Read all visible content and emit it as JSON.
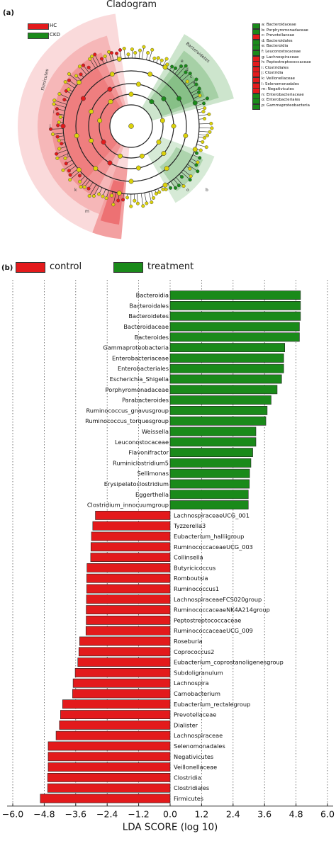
{
  "panel_a_label": "(a)",
  "panel_b_label": "(b)",
  "cladogram": {
    "title": "Cladogram",
    "groups": [
      {
        "name": "HC",
        "color": "#e31a1c"
      },
      {
        "name": "CKD",
        "color": "#1a8a1a"
      }
    ],
    "clade_labels": [
      {
        "text": "Firmicutes",
        "color": "#e31a1c"
      },
      {
        "text": "Bacteroidetes",
        "color": "#1a8a1a"
      }
    ],
    "wedge_letters": [
      "i",
      "l",
      "k",
      "m",
      "e",
      "d",
      "c",
      "a",
      "b",
      "o",
      "j"
    ],
    "legend": [
      {
        "label": "a: Bacteroidaceae",
        "color": "#1a8a1a"
      },
      {
        "label": "b: Porphyromonadaceae",
        "color": "#1a8a1a"
      },
      {
        "label": "c: Prevotellaceae",
        "color": "#e31a1c"
      },
      {
        "label": "d: Bacteroidales",
        "color": "#1a8a1a"
      },
      {
        "label": "e: Bacteroidia",
        "color": "#1a8a1a"
      },
      {
        "label": "f: Leuconostocaceae",
        "color": "#1a8a1a"
      },
      {
        "label": "g: Lachnospiraceae",
        "color": "#e31a1c"
      },
      {
        "label": "h: Peptostreptococcaceae",
        "color": "#e31a1c"
      },
      {
        "label": "i: Clostridiales",
        "color": "#e31a1c"
      },
      {
        "label": "j: Clostridia",
        "color": "#e31a1c"
      },
      {
        "label": "k: Veillonellaceae",
        "color": "#e31a1c"
      },
      {
        "label": "l: Selenomonadales",
        "color": "#e31a1c"
      },
      {
        "label": "m: Negativicutes",
        "color": "#e31a1c"
      },
      {
        "label": "n: Enterobacteriaceae",
        "color": "#1a8a1a"
      },
      {
        "label": "o: Enterobacteriales",
        "color": "#1a8a1a"
      },
      {
        "label": "p: Gammaproteobacteria",
        "color": "#1a8a1a"
      }
    ]
  },
  "chart_data": {
    "type": "bar",
    "orientation": "horizontal",
    "xlabel": "LDA SCORE (log 10)",
    "ylabel": "",
    "xlim": [
      -6.0,
      6.0
    ],
    "xticks": [
      "−6.0",
      "−4.8",
      "−3.6",
      "−2.4",
      "−1.2",
      "0.0",
      "1.2",
      "2.4",
      "3.6",
      "4.8",
      "6.0"
    ],
    "xtick_values": [
      -6.0,
      -4.8,
      -3.6,
      -2.4,
      -1.2,
      0.0,
      1.2,
      2.4,
      3.6,
      4.8,
      6.0
    ],
    "grid": "vertical dotted",
    "legend_position": "top-left",
    "series": [
      {
        "name": "control",
        "color": "#e31a1c"
      },
      {
        "name": "treatment",
        "color": "#1a8a1a"
      }
    ],
    "bars": [
      {
        "label": "Bacteroidia",
        "value": 4.97,
        "group": "treatment"
      },
      {
        "label": "Bacteroidales",
        "value": 4.97,
        "group": "treatment"
      },
      {
        "label": "Bacteroidetes",
        "value": 4.97,
        "group": "treatment"
      },
      {
        "label": "Bacteroidaceae",
        "value": 4.93,
        "group": "treatment"
      },
      {
        "label": "Bacteroides",
        "value": 4.93,
        "group": "treatment"
      },
      {
        "label": "Gammaproteobacteria",
        "value": 4.37,
        "group": "treatment"
      },
      {
        "label": "Enterobacteriaceae",
        "value": 4.33,
        "group": "treatment"
      },
      {
        "label": "Enterobacteriales",
        "value": 4.33,
        "group": "treatment"
      },
      {
        "label": "Escherichia_Shigella",
        "value": 4.25,
        "group": "treatment"
      },
      {
        "label": "Porphyromonadaceae",
        "value": 4.08,
        "group": "treatment"
      },
      {
        "label": "Parabacteroides",
        "value": 3.85,
        "group": "treatment"
      },
      {
        "label": "Ruminococcus_gnavusgroup",
        "value": 3.7,
        "group": "treatment"
      },
      {
        "label": "Ruminococcus_torquesgroup",
        "value": 3.65,
        "group": "treatment"
      },
      {
        "label": "Weissella",
        "value": 3.27,
        "group": "treatment"
      },
      {
        "label": "Leuconostocaceae",
        "value": 3.27,
        "group": "treatment"
      },
      {
        "label": "Flavonifractor",
        "value": 3.15,
        "group": "treatment"
      },
      {
        "label": "Ruminiclostridium5",
        "value": 3.08,
        "group": "treatment"
      },
      {
        "label": "Sellimonas",
        "value": 3.03,
        "group": "treatment"
      },
      {
        "label": "Erysipelatoclostridium",
        "value": 3.02,
        "group": "treatment"
      },
      {
        "label": "Eggerthella",
        "value": 2.98,
        "group": "treatment"
      },
      {
        "label": "Clostridium_innocuumgroup",
        "value": 2.98,
        "group": "treatment"
      },
      {
        "label": "LachnospiraceaeUCG_001",
        "value": -2.85,
        "group": "control"
      },
      {
        "label": "Tyzzerella3",
        "value": -2.95,
        "group": "control"
      },
      {
        "label": "Eubacterium_halliigroup",
        "value": -3.0,
        "group": "control"
      },
      {
        "label": "RuminococcaceaeUCG_003",
        "value": -3.02,
        "group": "control"
      },
      {
        "label": "Collinsella",
        "value": -3.03,
        "group": "control"
      },
      {
        "label": "Butyricicoccus",
        "value": -3.17,
        "group": "control"
      },
      {
        "label": "Romboutsia",
        "value": -3.18,
        "group": "control"
      },
      {
        "label": "Ruminococcus1",
        "value": -3.18,
        "group": "control"
      },
      {
        "label": "LachnospiraceaeFCS020group",
        "value": -3.19,
        "group": "control"
      },
      {
        "label": "RuminococcaceaeNK4A214group",
        "value": -3.2,
        "group": "control"
      },
      {
        "label": "Peptostreptococcaceae",
        "value": -3.2,
        "group": "control"
      },
      {
        "label": "RuminococcaceaeUCG_009",
        "value": -3.21,
        "group": "control"
      },
      {
        "label": "Roseburia",
        "value": -3.45,
        "group": "control"
      },
      {
        "label": "Coprococcus2",
        "value": -3.48,
        "group": "control"
      },
      {
        "label": "Eubacterium_coprostanoligenesgroup",
        "value": -3.52,
        "group": "control"
      },
      {
        "label": "Subdoligranulum",
        "value": -3.62,
        "group": "control"
      },
      {
        "label": "Lachnospira",
        "value": -3.7,
        "group": "control"
      },
      {
        "label": "Carnobacterium",
        "value": -3.72,
        "group": "control"
      },
      {
        "label": "Eubacterium_rectalegroup",
        "value": -4.1,
        "group": "control"
      },
      {
        "label": "Prevotellaceae",
        "value": -4.18,
        "group": "control"
      },
      {
        "label": "Dialister",
        "value": -4.22,
        "group": "control"
      },
      {
        "label": "Lachnospiraceae",
        "value": -4.35,
        "group": "control"
      },
      {
        "label": "Selenomonadales",
        "value": -4.65,
        "group": "control"
      },
      {
        "label": "Negativicutes",
        "value": -4.65,
        "group": "control"
      },
      {
        "label": "Veillonellaceae",
        "value": -4.65,
        "group": "control"
      },
      {
        "label": "Clostridia",
        "value": -4.67,
        "group": "control"
      },
      {
        "label": "Clostridiales",
        "value": -4.67,
        "group": "control"
      },
      {
        "label": "Firmicutes",
        "value": -4.95,
        "group": "control"
      }
    ]
  }
}
